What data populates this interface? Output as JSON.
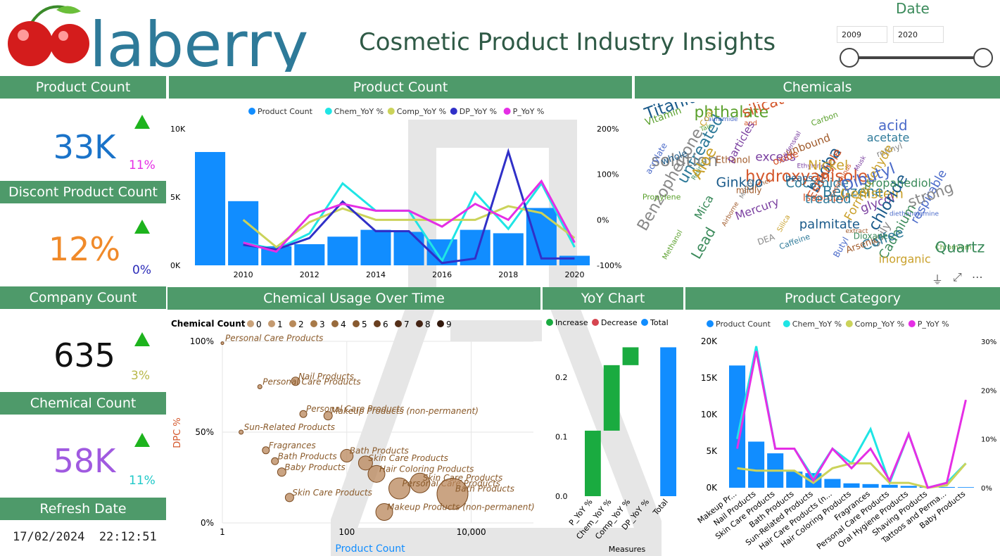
{
  "brand": {
    "logo_text": "laberry"
  },
  "title": "Cosmetic Product Industry Insights",
  "date_filter": {
    "label": "Date",
    "from": "2009",
    "to": "2020"
  },
  "kpis": {
    "product_count": {
      "header": "Product Count",
      "value": "33K",
      "pct": "11%"
    },
    "discont": {
      "header": "Discont Product Count",
      "value": "12%",
      "pct": "0%"
    },
    "company": {
      "header": "Company Count",
      "value": "635",
      "pct": "3%"
    },
    "chemical": {
      "header": "Chemical Count",
      "value": "58K",
      "pct": "11%"
    },
    "refresh": {
      "header": "Refresh Date",
      "value": "17/02/2024  22:12:51"
    }
  },
  "headers": {
    "product_count_chart": "Product Count",
    "chemicals": "Chemicals",
    "usage": "Chemical Usage Over Time",
    "yoy": "YoY Chart",
    "category": "Product Category"
  },
  "colors": {
    "blue": "#118dff",
    "cyan": "#1fe5e5",
    "olive": "#cbd35a",
    "navy": "#3030c8",
    "magenta": "#e52ee5",
    "green": "#1aab40",
    "red": "#d64550",
    "brown": "#9c6a3a",
    "header_green": "#4e9a6a"
  },
  "chart_data": [
    {
      "type": "bar",
      "title": "Product Count",
      "legend": [
        "Product Count",
        "Chem_YoY %",
        "Comp_YoY %",
        "DP_YoY %",
        "P_YoY %"
      ],
      "x": [
        2009,
        2010,
        2011,
        2012,
        2013,
        2014,
        2015,
        2016,
        2017,
        2018,
        2019,
        2020
      ],
      "x_ticks": [
        "2010",
        "2012",
        "2014",
        "2016",
        "2018",
        "2020"
      ],
      "y_ticks": [
        "0K",
        "5K",
        "10K"
      ],
      "y2_ticks": [
        "-100%",
        "0%",
        "100%",
        "200%"
      ],
      "ylim": [
        0,
        10000
      ],
      "y2lim": [
        -100,
        200
      ],
      "series": [
        {
          "name": "Product Count",
          "values": [
            8300,
            4700,
            1400,
            1550,
            2100,
            2600,
            2450,
            1900,
            2600,
            2350,
            4200,
            700
          ]
        },
        {
          "name": "Chem_YoY %",
          "values": [
            null,
            -50,
            -65,
            -30,
            80,
            20,
            20,
            -90,
            60,
            -20,
            80,
            -60
          ]
        },
        {
          "name": "Comp_YoY %",
          "values": [
            null,
            0,
            -60,
            -5,
            25,
            0,
            0,
            0,
            0,
            30,
            15,
            -40
          ]
        },
        {
          "name": "DP_YoY %",
          "values": [
            null,
            -55,
            -65,
            -40,
            40,
            -25,
            -25,
            -95,
            -85,
            150,
            -85,
            -85
          ]
        },
        {
          "name": "P_YoY %",
          "values": [
            null,
            -50,
            -70,
            10,
            35,
            20,
            20,
            -15,
            35,
            0,
            85,
            -50
          ]
        }
      ]
    },
    {
      "type": "scatter",
      "title": "Chemical Usage Over Time",
      "legend_title": "Chemical Count",
      "legend": [
        "0",
        "1",
        "2",
        "3",
        "4",
        "5",
        "6",
        "7",
        "8",
        "9"
      ],
      "xlabel": "Product Count",
      "ylabel": "DPC %",
      "x_scale": "log",
      "x_ticks": [
        "1",
        "100",
        "10,000"
      ],
      "y_ticks": [
        "0%",
        "50%",
        "100%"
      ],
      "points": [
        {
          "label": "Personal Care Products",
          "x": 1,
          "y": 99,
          "s": 2
        },
        {
          "label": "Nail Products",
          "x": 15,
          "y": 78,
          "s": 6
        },
        {
          "label": "Personal Care Products",
          "x": 4,
          "y": 75,
          "s": 3
        },
        {
          "label": "Personal Care Products",
          "x": 20,
          "y": 60,
          "s": 5
        },
        {
          "label": "Makeup Products (non-permanent)",
          "x": 50,
          "y": 59,
          "s": 6
        },
        {
          "label": "Sun-Related Products",
          "x": 2,
          "y": 50,
          "s": 3
        },
        {
          "label": "Fragrances",
          "x": 5,
          "y": 40,
          "s": 5
        },
        {
          "label": "Bath Products",
          "x": 100,
          "y": 37,
          "s": 9
        },
        {
          "label": "Bath Products",
          "x": 7,
          "y": 34,
          "s": 5
        },
        {
          "label": "Skin Care Products",
          "x": 200,
          "y": 33,
          "s": 10
        },
        {
          "label": "Baby Products",
          "x": 9,
          "y": 28,
          "s": 6
        },
        {
          "label": "Hair Coloring Products",
          "x": 300,
          "y": 27,
          "s": 12
        },
        {
          "label": "Skin Care Products",
          "x": 1500,
          "y": 22,
          "s": 14
        },
        {
          "label": "Personal Care Products",
          "x": 700,
          "y": 19,
          "s": 15
        },
        {
          "label": "Bath Products",
          "x": 5000,
          "y": 16,
          "s": 22
        },
        {
          "label": "Skin Care Products",
          "x": 12,
          "y": 14,
          "s": 6
        },
        {
          "label": "Makeup Products (non-permanent)",
          "x": 400,
          "y": 6,
          "s": 12
        }
      ]
    },
    {
      "type": "bar",
      "title": "YoY Chart",
      "subtype": "waterfall",
      "legend": [
        "Increase",
        "Decrease",
        "Total"
      ],
      "xlabel": "Measures",
      "categories": [
        "P_YoY %",
        "Chem_YoY %",
        "Comp_YoY %",
        "DP_YoY %",
        "Total"
      ],
      "values": [
        0.11,
        0.11,
        0.03,
        0.0,
        0.25
      ],
      "y_ticks": [
        "0.0",
        "0.1",
        "0.2"
      ],
      "ylim": [
        0,
        0.26
      ]
    },
    {
      "type": "bar",
      "title": "Product Category",
      "legend": [
        "Product Count",
        "Chem_YoY %",
        "Comp_YoY %",
        "P_YoY %"
      ],
      "categories": [
        "Makeup Pr...",
        "Nail Products",
        "Skin Care Products",
        "Bath Products",
        "Sun-Related Products",
        "Hair Care Products (n...",
        "Hair Coloring Products",
        "Fragrances",
        "Personal Care Products",
        "Oral Hygiene Products",
        "Shaving Products",
        "Tattoos and Perma...",
        "Baby Products"
      ],
      "y_ticks": [
        "0K",
        "5K",
        "10K",
        "15K",
        "20K"
      ],
      "y2_ticks": [
        "0%",
        "10%",
        "20%",
        "30%"
      ],
      "ylim": [
        0,
        20000
      ],
      "y2lim": [
        0,
        30
      ],
      "series": [
        {
          "name": "Product Count",
          "values": [
            16700,
            6300,
            4700,
            2200,
            2000,
            1200,
            600,
            500,
            400,
            250,
            150,
            100,
            80
          ]
        },
        {
          "name": "Chem_YoY %",
          "values": [
            10,
            29,
            8,
            8,
            2,
            8,
            5,
            12,
            1,
            11,
            0,
            1,
            5
          ]
        },
        {
          "name": "Comp_YoY %",
          "values": [
            4,
            3.5,
            3.5,
            3.5,
            1,
            4,
            5,
            5,
            1,
            1,
            0,
            0.5,
            5
          ]
        },
        {
          "name": "P_YoY %",
          "values": [
            8,
            28,
            8,
            8,
            1.5,
            8,
            4,
            8,
            1.5,
            11,
            0,
            1,
            18
          ]
        }
      ]
    }
  ],
  "wordcloud": [
    "untreated",
    "Methanol",
    "Isopropyl",
    "Goldenseal",
    "biloba",
    "Silica",
    "daily",
    "Mica",
    "ether",
    "diethanolamine",
    "Benzene",
    "phthalate",
    "hydroxyanisole",
    "excess",
    "Ginkgo",
    "Genistein",
    "solution",
    "Cadmium",
    "Ethanol",
    "Lauramide",
    "Coffee",
    "Carbon",
    "and",
    "glycol",
    "chloride",
    "Coal",
    "Benzophenone",
    "Retinol",
    "extract",
    "acid",
    "Cocamide",
    "Talc",
    "compounds",
    "Ethylene",
    "whole",
    "Aloe",
    "retinyl",
    "Lead",
    "Arsenic",
    "Butyl",
    "acetate",
    "Vitamin",
    "silicate",
    "Musk",
    "Titanium",
    "Formaldehyde",
    "DEA",
    "propanediol",
    "Airborne",
    "respirable",
    "Caffeine",
    "Chromium",
    "Estragole",
    "Mercury",
    "palmitate",
    "inorganic",
    "strong",
    "Dioxane",
    "unbound",
    "Dibutyl",
    "treated",
    "Propylene",
    "oxide",
    "particles",
    "beans",
    "Nickel",
    "Methyl",
    "Quartz",
    "mildly",
    "acrylate"
  ],
  "toolbar": [
    "filter-icon",
    "focus-icon",
    "more-icon"
  ]
}
